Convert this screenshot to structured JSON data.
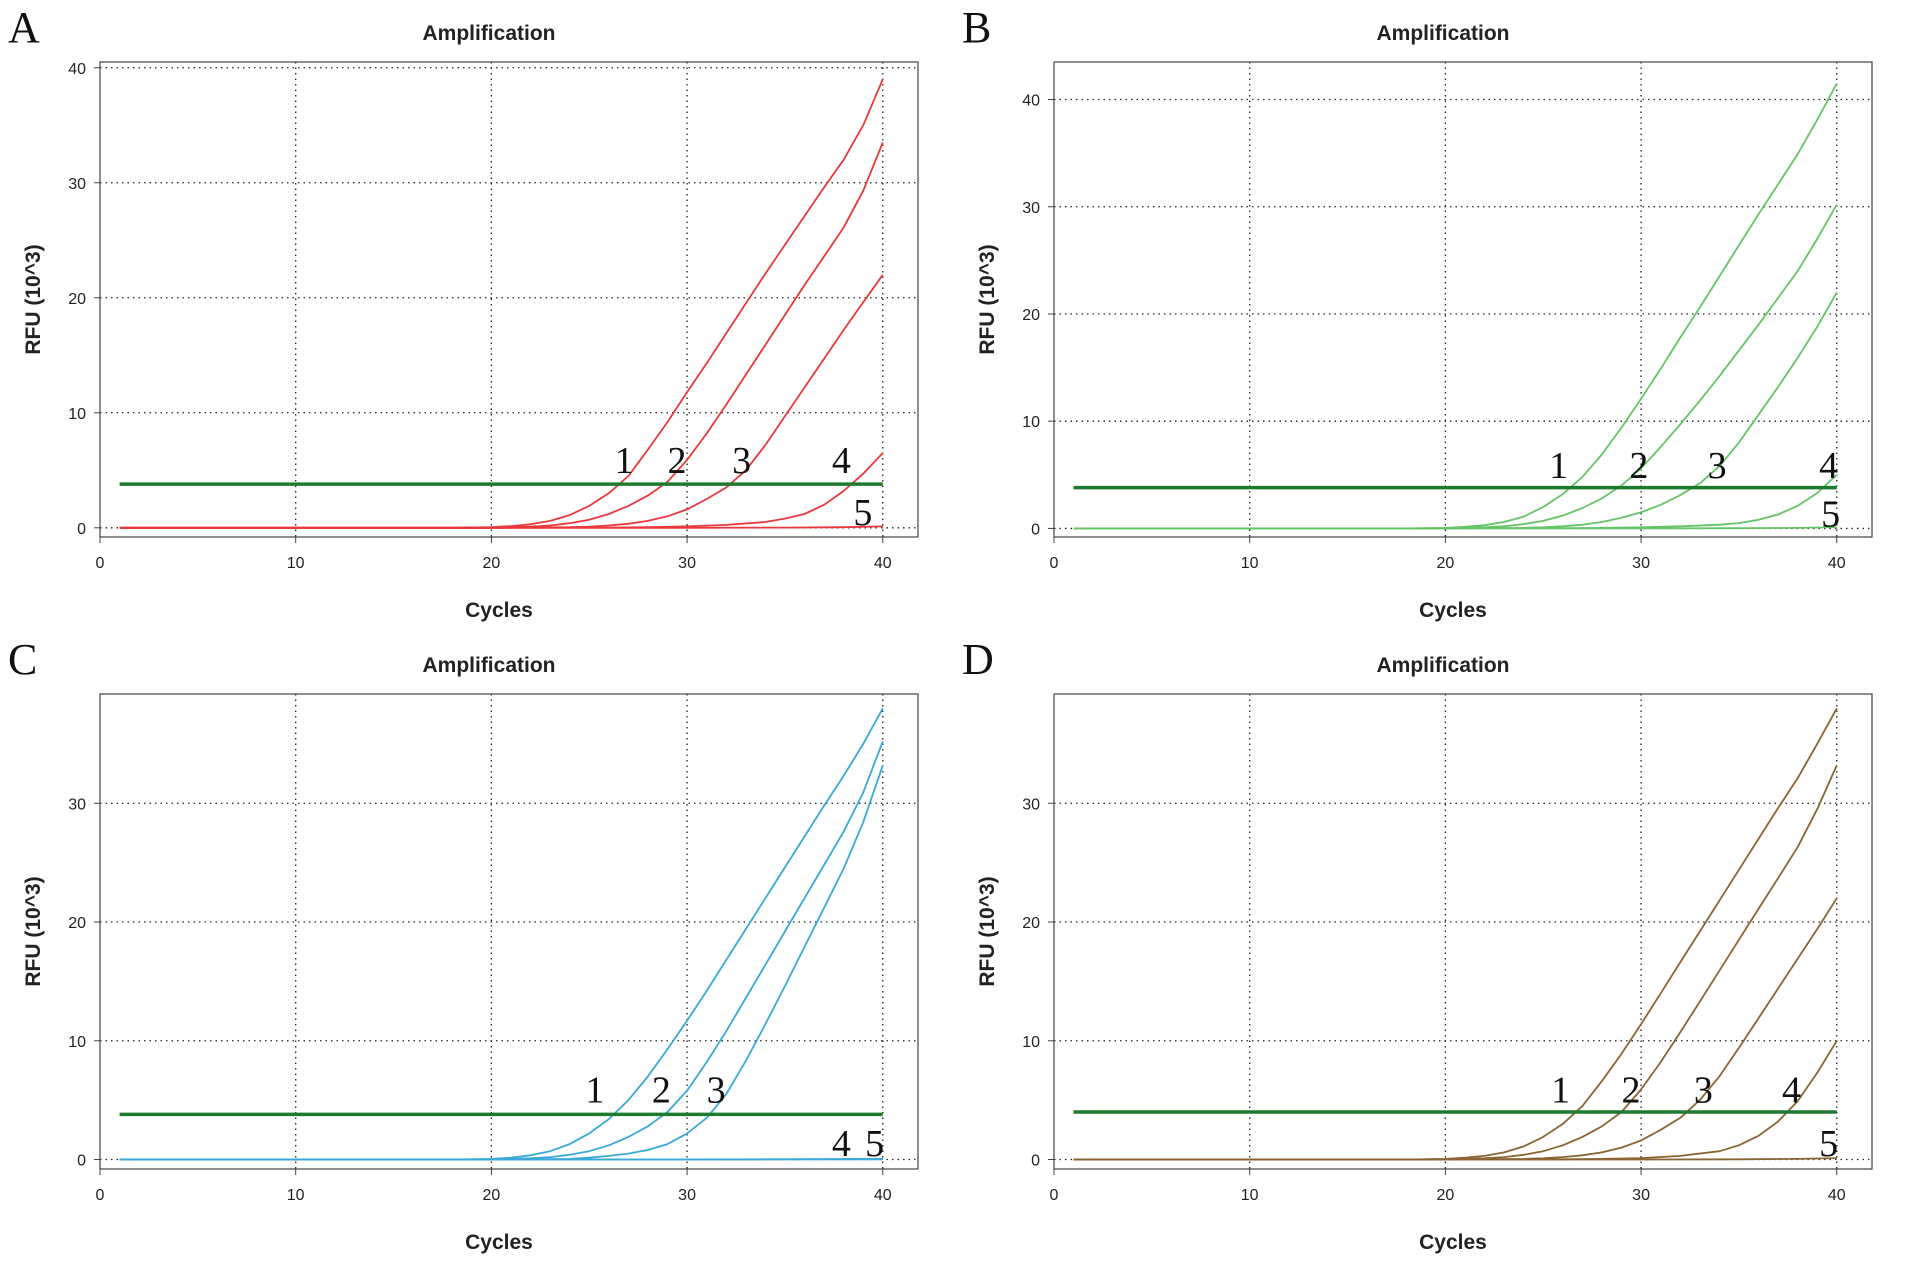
{
  "chart_data": [
    {
      "panel_label": "A",
      "type": "line",
      "title": "Amplification",
      "xlabel": "Cycles",
      "ylabel": "RFU (10^3)",
      "xlim": [
        0,
        41.8
      ],
      "ylim": [
        -0.8,
        40.5
      ],
      "xticks": [
        0,
        10,
        20,
        30,
        40
      ],
      "yticks": [
        0,
        10,
        20,
        30,
        40
      ],
      "grid": true,
      "curve_color": "#e8383b",
      "threshold": 3.8,
      "threshold_color": "#1f7a2e",
      "series": [
        {
          "name": "1",
          "x": [
            1,
            5,
            10,
            15,
            18,
            20,
            21,
            22,
            23,
            24,
            25,
            26,
            27,
            28,
            29,
            30,
            31,
            32,
            33,
            34,
            35,
            36,
            37,
            38,
            39,
            40
          ],
          "values": [
            0,
            0,
            0,
            0,
            0,
            0.05,
            0.15,
            0.3,
            0.6,
            1.1,
            1.9,
            3.0,
            4.5,
            6.8,
            9.2,
            11.8,
            14.3,
            16.9,
            19.5,
            22.1,
            24.6,
            27.1,
            29.6,
            32.0,
            35.0,
            39.0
          ]
        },
        {
          "name": "2",
          "x": [
            1,
            5,
            10,
            15,
            18,
            20,
            22,
            23,
            24,
            25,
            26,
            27,
            28,
            29,
            30,
            31,
            32,
            33,
            34,
            35,
            36,
            37,
            38,
            39,
            40
          ],
          "values": [
            0,
            0,
            0,
            0,
            0,
            0.02,
            0.1,
            0.2,
            0.4,
            0.7,
            1.2,
            1.9,
            2.8,
            4.0,
            5.9,
            8.2,
            10.7,
            13.3,
            15.9,
            18.5,
            21.1,
            23.6,
            26.1,
            29.3,
            33.5
          ]
        },
        {
          "name": "3",
          "x": [
            1,
            5,
            10,
            15,
            20,
            24,
            25,
            26,
            27,
            28,
            29,
            30,
            31,
            32,
            33,
            34,
            35,
            36,
            37,
            38,
            39,
            40
          ],
          "values": [
            0,
            0,
            0,
            0,
            0,
            0.05,
            0.1,
            0.2,
            0.35,
            0.6,
            1.0,
            1.6,
            2.5,
            3.5,
            5.0,
            7.2,
            9.7,
            12.2,
            14.7,
            17.2,
            19.6,
            22.0
          ]
        },
        {
          "name": "4",
          "x": [
            1,
            5,
            10,
            15,
            20,
            26,
            28,
            30,
            32,
            34,
            35,
            36,
            37,
            38,
            39,
            40
          ],
          "values": [
            0,
            0,
            0,
            0,
            0,
            0.02,
            0.05,
            0.12,
            0.25,
            0.5,
            0.8,
            1.2,
            2.0,
            3.2,
            4.7,
            6.5
          ]
        },
        {
          "name": "5",
          "x": [
            1,
            10,
            20,
            30,
            35,
            38,
            40
          ],
          "values": [
            0,
            0,
            0,
            0,
            0.02,
            0.05,
            0.12
          ]
        }
      ],
      "curve_labels": [
        {
          "text": "1",
          "x": 26.3,
          "y": 5.8
        },
        {
          "text": "2",
          "x": 29.0,
          "y": 5.8
        },
        {
          "text": "3",
          "x": 32.3,
          "y": 5.8
        },
        {
          "text": "4",
          "x": 37.4,
          "y": 5.8
        },
        {
          "text": "5",
          "x": 38.5,
          "y": 1.3
        }
      ]
    },
    {
      "panel_label": "B",
      "type": "line",
      "title": "Amplification",
      "xlabel": "Cycles",
      "ylabel": "RFU (10^3)",
      "xlim": [
        0,
        41.8
      ],
      "ylim": [
        -0.8,
        43.5
      ],
      "xticks": [
        0,
        10,
        20,
        30,
        40
      ],
      "yticks": [
        0,
        10,
        20,
        30,
        40
      ],
      "grid": true,
      "curve_color": "#66c466",
      "threshold": 3.8,
      "threshold_color": "#1f7a2e",
      "series": [
        {
          "name": "1",
          "x": [
            1,
            5,
            10,
            15,
            18,
            20,
            21,
            22,
            23,
            24,
            25,
            26,
            27,
            28,
            29,
            30,
            31,
            32,
            33,
            34,
            35,
            36,
            37,
            38,
            39,
            40
          ],
          "values": [
            0,
            0,
            0,
            0,
            0,
            0.05,
            0.15,
            0.3,
            0.6,
            1.1,
            2.0,
            3.2,
            4.8,
            6.9,
            9.4,
            12.1,
            14.9,
            17.8,
            20.6,
            23.5,
            26.4,
            29.3,
            32.1,
            34.9,
            38.1,
            41.5
          ]
        },
        {
          "name": "2",
          "x": [
            1,
            5,
            10,
            15,
            18,
            20,
            22,
            23,
            24,
            25,
            26,
            27,
            28,
            29,
            30,
            31,
            32,
            33,
            34,
            35,
            36,
            37,
            38,
            39,
            40
          ],
          "values": [
            0,
            0,
            0,
            0,
            0,
            0.02,
            0.1,
            0.2,
            0.4,
            0.7,
            1.2,
            1.9,
            2.8,
            4.0,
            5.6,
            7.6,
            9.7,
            11.9,
            14.2,
            16.6,
            19.0,
            21.5,
            24.0,
            27.0,
            30.2
          ]
        },
        {
          "name": "3",
          "x": [
            1,
            5,
            10,
            15,
            20,
            24,
            25,
            26,
            27,
            28,
            29,
            30,
            31,
            32,
            33,
            34,
            35,
            36,
            37,
            38,
            39,
            40
          ],
          "values": [
            0,
            0,
            0,
            0,
            0,
            0.05,
            0.1,
            0.2,
            0.35,
            0.6,
            1.0,
            1.5,
            2.2,
            3.1,
            4.2,
            5.8,
            8.0,
            10.6,
            13.2,
            15.9,
            18.8,
            22.0
          ]
        },
        {
          "name": "4",
          "x": [
            1,
            5,
            10,
            15,
            20,
            26,
            28,
            30,
            32,
            34,
            35,
            36,
            37,
            38,
            39,
            40
          ],
          "values": [
            0,
            0,
            0,
            0,
            0,
            0.02,
            0.05,
            0.1,
            0.2,
            0.35,
            0.5,
            0.8,
            1.3,
            2.1,
            3.3,
            5.0
          ]
        },
        {
          "name": "5",
          "x": [
            1,
            10,
            20,
            30,
            35,
            38,
            40
          ],
          "values": [
            0,
            0,
            0,
            0,
            0.02,
            0.05,
            0.12
          ]
        }
      ],
      "curve_labels": [
        {
          "text": "1",
          "x": 25.3,
          "y": 5.8
        },
        {
          "text": "2",
          "x": 29.4,
          "y": 5.8
        },
        {
          "text": "3",
          "x": 33.4,
          "y": 5.8
        },
        {
          "text": "4",
          "x": 39.1,
          "y": 5.8
        },
        {
          "text": "5",
          "x": 39.2,
          "y": 1.3
        }
      ]
    },
    {
      "panel_label": "C",
      "type": "line",
      "title": "Amplification",
      "xlabel": "Cycles",
      "ylabel": "RFU (10^3)",
      "xlim": [
        0,
        41.8
      ],
      "ylim": [
        -0.8,
        39.2
      ],
      "xticks": [
        0,
        10,
        20,
        30,
        40
      ],
      "yticks": [
        0,
        10,
        20,
        30
      ],
      "grid": true,
      "curve_color": "#3aa9d6",
      "threshold": 3.8,
      "threshold_color": "#1f7a2e",
      "series": [
        {
          "name": "1",
          "x": [
            1,
            5,
            10,
            15,
            18,
            20,
            21,
            22,
            23,
            24,
            25,
            26,
            27,
            28,
            29,
            30,
            31,
            32,
            33,
            34,
            35,
            36,
            37,
            38,
            39,
            40
          ],
          "values": [
            0,
            0,
            0,
            0,
            0,
            0.05,
            0.15,
            0.35,
            0.7,
            1.3,
            2.2,
            3.4,
            5.0,
            7.0,
            9.3,
            11.7,
            14.2,
            16.8,
            19.4,
            22.0,
            24.6,
            27.2,
            29.8,
            32.3,
            35.0,
            38.0
          ]
        },
        {
          "name": "2",
          "x": [
            1,
            5,
            10,
            15,
            18,
            20,
            22,
            23,
            24,
            25,
            26,
            27,
            28,
            29,
            30,
            31,
            32,
            33,
            34,
            35,
            36,
            37,
            38,
            39,
            40
          ],
          "values": [
            0,
            0,
            0,
            0,
            0,
            0.02,
            0.1,
            0.2,
            0.4,
            0.7,
            1.2,
            1.9,
            2.8,
            4.0,
            5.8,
            8.2,
            10.8,
            13.6,
            16.4,
            19.2,
            22.0,
            24.8,
            27.6,
            30.9,
            35.2
          ]
        },
        {
          "name": "3",
          "x": [
            1,
            5,
            10,
            15,
            20,
            24,
            25,
            26,
            27,
            28,
            29,
            30,
            31,
            32,
            33,
            34,
            35,
            36,
            37,
            38,
            39,
            40
          ],
          "values": [
            0,
            0,
            0,
            0,
            0,
            0.05,
            0.15,
            0.3,
            0.5,
            0.8,
            1.3,
            2.2,
            3.5,
            5.5,
            8.3,
            11.4,
            14.6,
            17.9,
            21.2,
            24.5,
            28.4,
            33.2
          ]
        },
        {
          "name": "4",
          "x": [
            1,
            10,
            20,
            30,
            40
          ],
          "values": [
            0,
            0,
            0,
            0,
            0.05
          ]
        },
        {
          "name": "5",
          "x": [
            1,
            10,
            20,
            30,
            40
          ],
          "values": [
            0,
            0,
            0,
            0,
            0.02
          ]
        }
      ],
      "curve_labels": [
        {
          "text": "1",
          "x": 24.8,
          "y": 5.8
        },
        {
          "text": "2",
          "x": 28.2,
          "y": 5.8
        },
        {
          "text": "3",
          "x": 31.0,
          "y": 5.8
        },
        {
          "text": "4",
          "x": 37.4,
          "y": 1.3
        },
        {
          "text": "5",
          "x": 39.1,
          "y": 1.3
        }
      ]
    },
    {
      "panel_label": "D",
      "type": "line",
      "title": "Amplification",
      "xlabel": "Cycles",
      "ylabel": "RFU (10^3)",
      "xlim": [
        0,
        41.8
      ],
      "ylim": [
        -0.8,
        39.2
      ],
      "xticks": [
        0,
        10,
        20,
        30,
        40
      ],
      "yticks": [
        0,
        10,
        20,
        30
      ],
      "grid": true,
      "curve_color": "#8b6433",
      "threshold": 4.0,
      "threshold_color": "#1f7a2e",
      "series": [
        {
          "name": "1",
          "x": [
            1,
            5,
            10,
            15,
            18,
            20,
            21,
            22,
            23,
            24,
            25,
            26,
            27,
            28,
            29,
            30,
            31,
            32,
            33,
            34,
            35,
            36,
            37,
            38,
            39,
            40
          ],
          "values": [
            0,
            0,
            0,
            0,
            0,
            0.05,
            0.15,
            0.3,
            0.6,
            1.1,
            1.9,
            3.0,
            4.5,
            6.6,
            8.9,
            11.4,
            14.0,
            16.6,
            19.2,
            21.8,
            24.4,
            27.0,
            29.6,
            32.1,
            35.0,
            38.0
          ]
        },
        {
          "name": "2",
          "x": [
            1,
            5,
            10,
            15,
            18,
            20,
            22,
            23,
            24,
            25,
            26,
            27,
            28,
            29,
            30,
            31,
            32,
            33,
            34,
            35,
            36,
            37,
            38,
            39,
            40
          ],
          "values": [
            0,
            0,
            0,
            0,
            0,
            0.02,
            0.1,
            0.2,
            0.4,
            0.7,
            1.2,
            1.9,
            2.8,
            4.0,
            5.9,
            8.2,
            10.7,
            13.3,
            15.9,
            18.5,
            21.1,
            23.7,
            26.3,
            29.5,
            33.2
          ]
        },
        {
          "name": "3",
          "x": [
            1,
            5,
            10,
            15,
            20,
            24,
            25,
            26,
            27,
            28,
            29,
            30,
            31,
            32,
            33,
            34,
            35,
            36,
            37,
            38,
            39,
            40
          ],
          "values": [
            0,
            0,
            0,
            0,
            0,
            0.05,
            0.1,
            0.2,
            0.35,
            0.6,
            1.0,
            1.6,
            2.5,
            3.5,
            5.0,
            7.0,
            9.4,
            11.9,
            14.4,
            16.9,
            19.4,
            22.0
          ]
        },
        {
          "name": "4",
          "x": [
            1,
            5,
            10,
            15,
            20,
            26,
            28,
            30,
            32,
            34,
            35,
            36,
            37,
            38,
            39,
            40
          ],
          "values": [
            0,
            0,
            0,
            0,
            0,
            0.02,
            0.05,
            0.12,
            0.3,
            0.7,
            1.2,
            2.0,
            3.2,
            4.9,
            7.3,
            10.0
          ]
        },
        {
          "name": "5",
          "x": [
            1,
            10,
            20,
            30,
            35,
            38,
            40
          ],
          "values": [
            0,
            0,
            0,
            0,
            0.02,
            0.05,
            0.12
          ]
        }
      ],
      "curve_labels": [
        {
          "text": "1",
          "x": 25.4,
          "y": 5.8
        },
        {
          "text": "2",
          "x": 29.0,
          "y": 5.8
        },
        {
          "text": "3",
          "x": 32.7,
          "y": 5.8
        },
        {
          "text": "4",
          "x": 37.2,
          "y": 5.8
        },
        {
          "text": "5",
          "x": 39.1,
          "y": 1.3
        }
      ]
    }
  ]
}
